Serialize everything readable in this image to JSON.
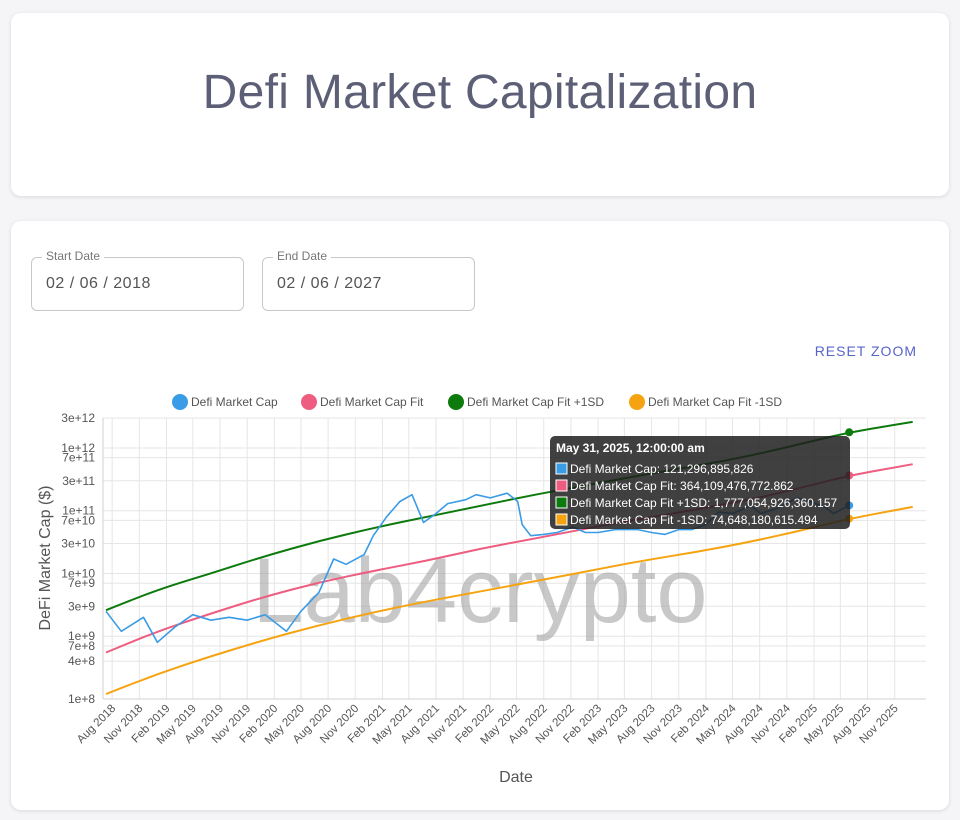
{
  "header": {
    "title": "Defi Market Capitalization"
  },
  "controls": {
    "start_label": "Start Date",
    "start_value": "02 / 06 / 2018",
    "end_label": "End Date",
    "end_value": "02 / 06 / 2027",
    "reset_label": "RESET ZOOM"
  },
  "watermark": "Lab4crypto",
  "colors": {
    "market_cap": "#3a9be6",
    "fit": "#ee5d80",
    "fit_plus": "#0d7a0d",
    "fit_minus": "#f5a310"
  },
  "chart_data": {
    "type": "line",
    "xlabel": "Date",
    "ylabel": "DeFi Market Cap ($)",
    "y_scale": "log",
    "ylim": [
      100000000.0,
      3000000000000.0
    ],
    "xlim": [
      "2018-07-01",
      "2026-02-15"
    ],
    "y_ticks": [
      "1e+8",
      "4e+8",
      "7e+8",
      "1e+9",
      "3e+9",
      "7e+9",
      "1e+10",
      "3e+10",
      "7e+10",
      "1e+11",
      "3e+11",
      "7e+11",
      "1e+12",
      "3e+12"
    ],
    "x_ticks": [
      "Aug 2018",
      "Nov 2018",
      "Feb 2019",
      "May 2019",
      "Aug 2019",
      "Nov 2019",
      "Feb 2020",
      "May 2020",
      "Aug 2020",
      "Nov 2020",
      "Feb 2021",
      "May 2021",
      "Aug 2021",
      "Nov 2021",
      "Feb 2022",
      "May 2022",
      "Aug 2022",
      "Nov 2022",
      "Feb 2023",
      "May 2023",
      "Aug 2023",
      "Nov 2023",
      "Feb 2024",
      "May 2024",
      "Aug 2024",
      "Nov 2024",
      "Feb 2025",
      "May 2025",
      "Aug 2025",
      "Nov 2025"
    ],
    "legend_position": "top",
    "grid": true,
    "series": [
      {
        "name": "Defi Market Cap",
        "x": [
          "2018-07-05",
          "2018-09-01",
          "2018-11-15",
          "2019-01-01",
          "2019-03-01",
          "2019-05-01",
          "2019-07-01",
          "2019-09-01",
          "2019-11-01",
          "2020-01-01",
          "2020-03-13",
          "2020-05-01",
          "2020-07-01",
          "2020-08-20",
          "2020-10-01",
          "2020-12-01",
          "2021-01-01",
          "2021-02-15",
          "2021-04-01",
          "2021-05-12",
          "2021-06-20",
          "2021-08-01",
          "2021-09-10",
          "2021-11-10",
          "2021-12-15",
          "2022-02-01",
          "2022-03-30",
          "2022-05-05",
          "2022-05-20",
          "2022-06-18",
          "2022-08-01",
          "2022-09-15",
          "2022-11-08",
          "2022-12-20",
          "2023-02-01",
          "2023-04-01",
          "2023-06-15",
          "2023-08-01",
          "2023-09-15",
          "2023-11-01",
          "2023-12-15",
          "2024-02-01",
          "2024-03-15",
          "2024-05-01",
          "2024-07-01",
          "2024-08-05",
          "2024-10-01",
          "2024-12-05",
          "2025-01-20",
          "2025-03-15",
          "2025-04-08",
          "2025-05-31"
        ],
        "y": [
          2500000000.0,
          1200000000.0,
          2000000000.0,
          800000000.0,
          1400000000.0,
          2200000000.0,
          1800000000.0,
          2000000000.0,
          1800000000.0,
          2200000000.0,
          1200000000.0,
          2500000000.0,
          5000000000.0,
          17000000000.0,
          14000000000.0,
          20000000000.0,
          40000000000.0,
          80000000000.0,
          140000000000.0,
          180000000000.0,
          65000000000.0,
          90000000000.0,
          130000000000.0,
          150000000000.0,
          180000000000.0,
          160000000000.0,
          190000000000.0,
          140000000000.0,
          60000000000.0,
          40000000000.0,
          42000000000.0,
          45000000000.0,
          55000000000.0,
          45000000000.0,
          45000000000.0,
          50000000000.0,
          50000000000.0,
          45000000000.0,
          42000000000.0,
          50000000000.0,
          50000000000.0,
          60000000000.0,
          95000000000.0,
          90000000000.0,
          120000000000.0,
          90000000000.0,
          110000000000.0,
          160000000000.0,
          140000000000.0,
          110000000000.0,
          90000000000.0,
          121296895826.0
        ]
      },
      {
        "name": "Defi Market Cap Fit",
        "x": [
          "2018-07-01",
          "2019-01-01",
          "2019-07-01",
          "2020-01-01",
          "2020-07-01",
          "2021-01-01",
          "2021-07-01",
          "2022-01-01",
          "2022-07-01",
          "2023-01-01",
          "2023-07-01",
          "2024-01-01",
          "2024-07-01",
          "2025-01-01",
          "2025-05-31",
          "2026-01-01"
        ],
        "y": [
          550000000.0,
          1200000000.0,
          2300000000.0,
          4300000000.0,
          7200000000.0,
          11000000000.0,
          16000000000.0,
          25000000000.0,
          36000000000.0,
          53000000000.0,
          75000000000.0,
          105000000000.0,
          150000000000.0,
          240000000000.0,
          364109476772.862,
          550000000000.0
        ]
      },
      {
        "name": "Defi Market Cap Fit +1SD",
        "x": [
          "2018-07-01",
          "2019-01-01",
          "2019-07-01",
          "2020-01-01",
          "2020-07-01",
          "2021-01-01",
          "2021-07-01",
          "2022-01-01",
          "2022-07-01",
          "2023-01-01",
          "2023-07-01",
          "2024-01-01",
          "2024-07-01",
          "2025-01-01",
          "2025-05-31",
          "2026-01-01"
        ],
        "y": [
          2600000000.0,
          5500000000.0,
          10000000000.0,
          19000000000.0,
          33000000000.0,
          53000000000.0,
          80000000000.0,
          120000000000.0,
          180000000000.0,
          260000000000.0,
          370000000000.0,
          520000000000.0,
          750000000000.0,
          1200000000000.0,
          1777054926360.157,
          2600000000000.0
        ]
      },
      {
        "name": "Defi Market Cap Fit -1SD",
        "x": [
          "2018-07-01",
          "2019-01-01",
          "2019-07-01",
          "2020-01-01",
          "2020-07-01",
          "2021-01-01",
          "2021-07-01",
          "2022-01-01",
          "2022-07-01",
          "2023-01-01",
          "2023-07-01",
          "2024-01-01",
          "2024-07-01",
          "2025-01-01",
          "2025-05-31",
          "2026-01-01"
        ],
        "y": [
          120000000.0,
          250000000.0,
          480000000.0,
          880000000.0,
          1500000000.0,
          2400000000.0,
          3600000000.0,
          5200000000.0,
          7500000000.0,
          11000000000.0,
          16000000000.0,
          22000000000.0,
          32000000000.0,
          50000000000.0,
          74648180615.494,
          115000000000.0
        ]
      }
    ],
    "tooltip": {
      "date": "2025-05-31",
      "title": "May 31, 2025, 12:00:00 am",
      "lines": [
        "Defi Market Cap: 121,296,895,826",
        "Defi Market Cap Fit: 364,109,476,772.862",
        "Defi Market Cap Fit +1SD: 1,777,054,926,360.157",
        "Defi Market Cap Fit -1SD: 74,648,180,615.494"
      ]
    }
  }
}
